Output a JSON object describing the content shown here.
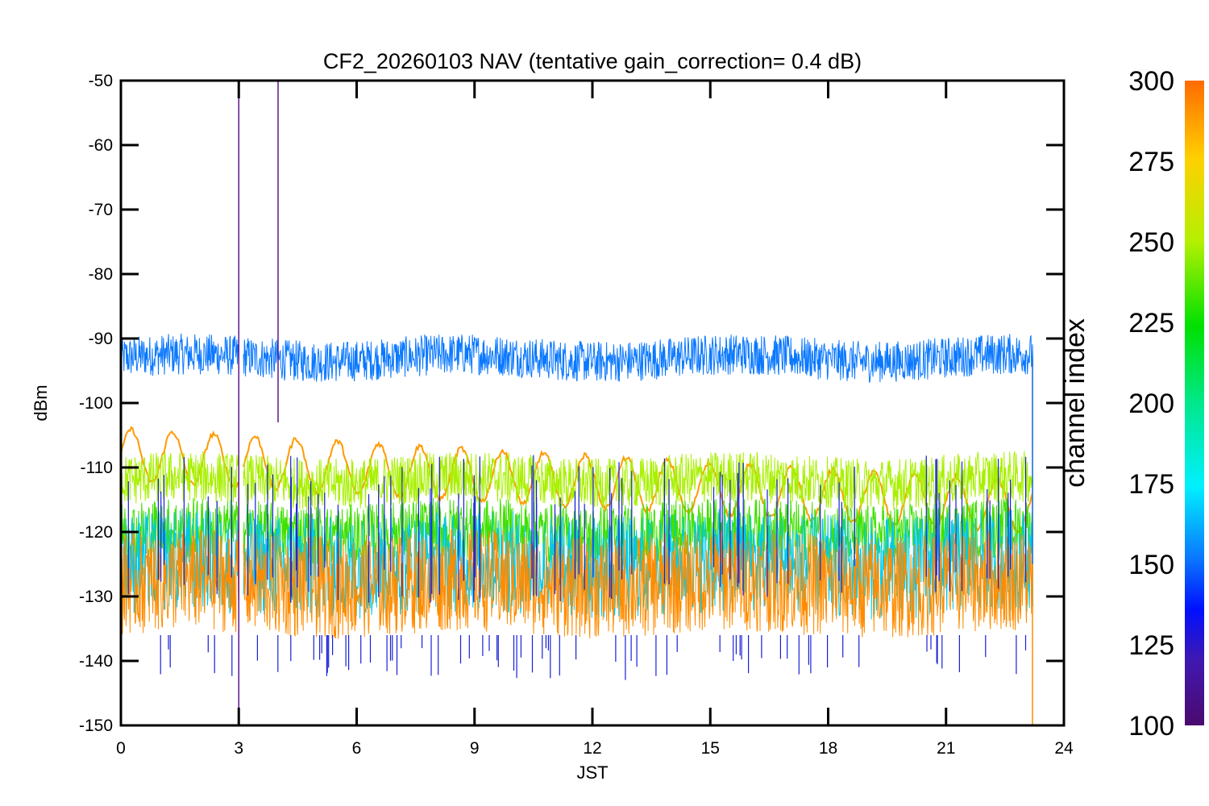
{
  "chart_data": {
    "type": "line",
    "title": "CF2_20260103 NAV (tentative gain_correction=  0.4 dB)",
    "xlabel": "JST",
    "ylabel": "dBm",
    "xlim": [
      0,
      24
    ],
    "ylim": [
      -150,
      -50
    ],
    "x_ticks": [
      "0",
      "3",
      "6",
      "9",
      "12",
      "15",
      "18",
      "21",
      "24"
    ],
    "y_ticks": [
      "-50",
      "-60",
      "-70",
      "-80",
      "-90",
      "-100",
      "-110",
      "-120",
      "-130",
      "-140",
      "-150"
    ],
    "grid": false,
    "data_end_x": 23.2,
    "data_gap_x": [
      3.0,
      3.1
    ],
    "colorbar": {
      "title": "channel index",
      "range": [
        100,
        300
      ],
      "ticks": [
        "100",
        "125",
        "150",
        "175",
        "200",
        "225",
        "250",
        "275",
        "300"
      ],
      "colormap": "rainbow"
    },
    "series": [
      {
        "channel": 150,
        "color": "#0a78ff",
        "pattern": "noise band",
        "mean_dBm": -93,
        "spread_dB": 4
      },
      {
        "channel": 290,
        "color": "#ff9a00",
        "pattern": "oscillating line",
        "mean_dBm": -108,
        "amplitude_dB": 4
      },
      {
        "channel": 260,
        "color": "#a8f000",
        "pattern": "noise band",
        "mean_dBm": -112,
        "spread_dB": 5
      },
      {
        "channel": 240,
        "color": "#40e000",
        "pattern": "noise band",
        "mean_dBm": -120,
        "spread_dB": 6
      },
      {
        "channel": 180,
        "color": "#00c8e6",
        "pattern": "noise band",
        "mean_dBm": -125,
        "spread_dB": 10
      },
      {
        "channel": 295,
        "color": "#ff8c00",
        "pattern": "noise band",
        "mean_dBm": -128,
        "spread_dB": 10
      },
      {
        "channel": 120,
        "color": "#1820d8",
        "pattern": "sparse spikes",
        "mean_dBm": -136,
        "spread_dB": 5
      }
    ],
    "spikes": [
      {
        "x": 3.0,
        "top_dBm": -50,
        "bottom_dBm": -150,
        "color": "#5a1890"
      },
      {
        "x": 4.0,
        "top_dBm": -50,
        "bottom_dBm": -103,
        "color": "#5a1890"
      }
    ]
  }
}
